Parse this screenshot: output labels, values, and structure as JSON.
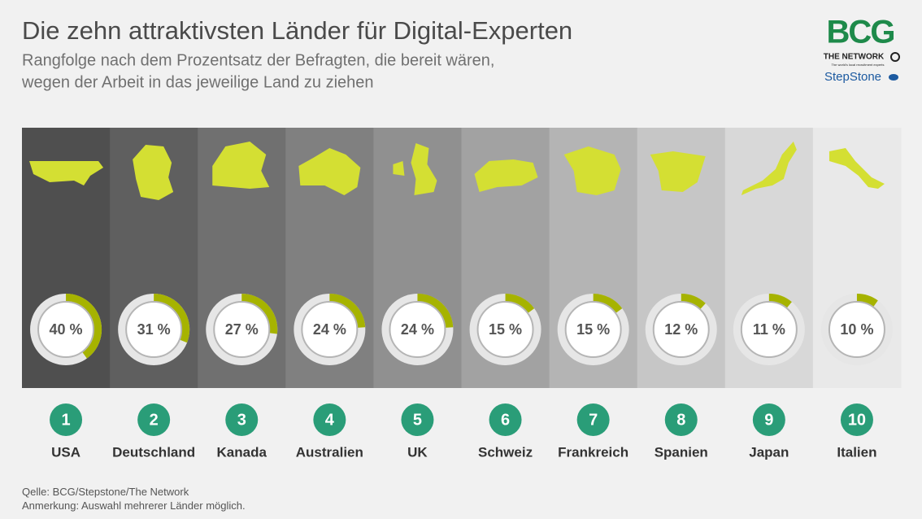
{
  "chart_data": {
    "type": "donut",
    "title": "Die zehn attraktivsten Länder für Digital-Experten",
    "subtitle": [
      "Rangfolge nach dem Prozentsatz der Befragten, die bereit wären,",
      "wegen der Arbeit in das jeweilige Land zu ziehen"
    ],
    "categories": [
      "USA",
      "Deutschland",
      "Kanada",
      "Australien",
      "UK",
      "Schweiz",
      "Frankreich",
      "Spanien",
      "Japan",
      "Italien"
    ],
    "ranks": [
      1,
      2,
      3,
      4,
      5,
      6,
      7,
      8,
      9,
      10
    ],
    "values": [
      40,
      31,
      27,
      24,
      24,
      15,
      15,
      12,
      11,
      10
    ],
    "value_labels": [
      "40 %",
      "31 %",
      "27 %",
      "24 %",
      "24 %",
      "15 %",
      "15 %",
      "12 %",
      "11 %",
      "10 %"
    ],
    "ylim": [
      0,
      100
    ],
    "color": "#a6b300",
    "column_colors": [
      "#4f4f4f",
      "#5f5f5f",
      "#707070",
      "#808080",
      "#909090",
      "#a2a2a2",
      "#b4b4b4",
      "#c6c6c6",
      "#d8d8d8",
      "#e9e9e9"
    ],
    "map_color": "#d4df33",
    "rank_color": "#2a9d78",
    "source": {
      "label": "Qelle:",
      "text": "BCG/Stepstone/The Network"
    },
    "note": {
      "label": "Anmerkung:",
      "text": "Auswahl mehrerer Länder möglich."
    },
    "logo": {
      "brand": "BCG",
      "network": "THE NETWORK",
      "tagline": "The world's local recruitment experts",
      "partner": "StepStone"
    }
  }
}
